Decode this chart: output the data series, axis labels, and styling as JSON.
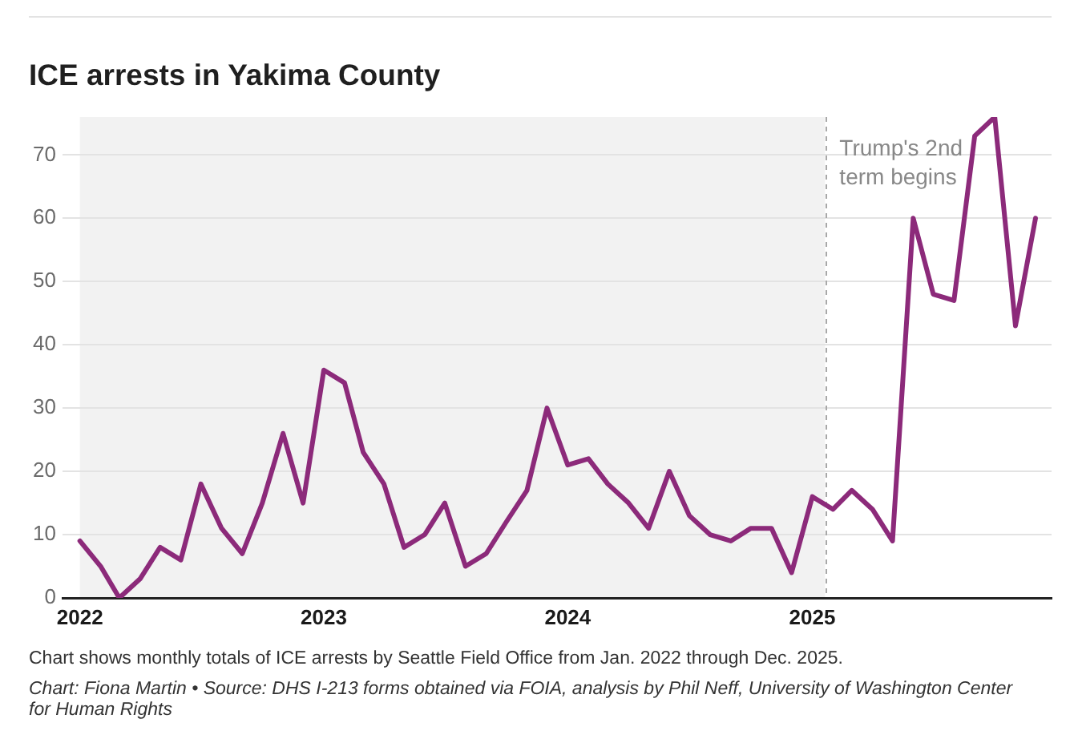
{
  "chart_data": {
    "type": "line",
    "title": "ICE arrests in Yakima County",
    "x": [
      "2022-01",
      "2022-02",
      "2022-03",
      "2022-04",
      "2022-05",
      "2022-06",
      "2022-07",
      "2022-08",
      "2022-09",
      "2022-10",
      "2022-11",
      "2022-12",
      "2023-01",
      "2023-02",
      "2023-03",
      "2023-04",
      "2023-05",
      "2023-06",
      "2023-07",
      "2023-08",
      "2023-09",
      "2023-10",
      "2023-11",
      "2023-12",
      "2024-01",
      "2024-02",
      "2024-03",
      "2024-04",
      "2024-05",
      "2024-06",
      "2024-07",
      "2024-08",
      "2024-09",
      "2024-10",
      "2024-11",
      "2024-12",
      "2025-01",
      "2025-02",
      "2025-03",
      "2025-04",
      "2025-05",
      "2025-06",
      "2025-07",
      "2025-08",
      "2025-09",
      "2025-10",
      "2025-11",
      "2025-12"
    ],
    "values": [
      9,
      5,
      0,
      3,
      8,
      6,
      18,
      11,
      7,
      15,
      26,
      15,
      36,
      34,
      23,
      18,
      8,
      10,
      15,
      5,
      7,
      12,
      17,
      30,
      21,
      22,
      18,
      15,
      11,
      20,
      13,
      10,
      9,
      11,
      11,
      4,
      16,
      14,
      17,
      14,
      9,
      60,
      48,
      47,
      73,
      76,
      43,
      60
    ],
    "color": "#8c2a7a",
    "marker": "none",
    "line_style": "solid",
    "xlim": [
      "2021-12-06",
      "2025-12-25"
    ],
    "xticks": [
      "2022",
      "2023",
      "2024",
      "2025"
    ],
    "ylim": [
      0,
      76
    ],
    "yticks": [
      0,
      10,
      20,
      30,
      40,
      50,
      60,
      70
    ],
    "grid": "y",
    "bands": [
      {
        "axis": "x",
        "from": "2022-01",
        "to": "2025-01-20",
        "color": "#f2f2f2"
      }
    ],
    "ref_lines": [
      {
        "axis": "x",
        "value": "2025-01-20",
        "label": "Trump's 2nd term begins",
        "color": "#a8a8a8",
        "line_style": "dashed"
      }
    ],
    "annotations": [
      "Chart shows monthly totals of ICE arrests by Seattle Field Office from Jan. 2022 through Dec. 2025.",
      "Chart: Fiona Martin • Source: DHS I-213 forms obtained via FOIA, analysis by Phil Neff, University of Washington Center for Human Rights"
    ]
  }
}
